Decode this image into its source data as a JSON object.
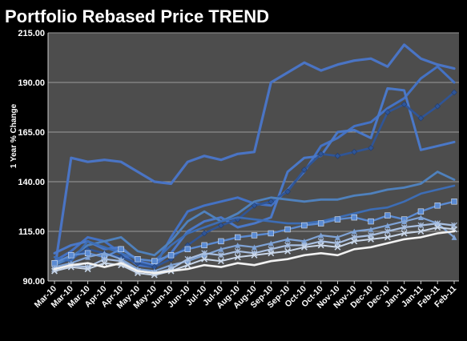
{
  "chart_data": {
    "type": "line",
    "title": "Portfolio Rebased Price TREND",
    "ylabel": "1 Year % Change",
    "xlabel": "",
    "ylim": [
      90,
      215
    ],
    "yticks": [
      90,
      115,
      140,
      165,
      190,
      215
    ],
    "ytick_labels": [
      "90.00",
      "115.00",
      "140.00",
      "165.00",
      "190.00",
      "215.00"
    ],
    "categories": [
      "Mar-10",
      "Mar-10",
      "Mar-10",
      "Apr-10",
      "Apr-10",
      "May-10",
      "May-10",
      "Jun-10",
      "Jun-10",
      "Jul-10",
      "Jul-10",
      "Aug-10",
      "Aug-10",
      "Sep-10",
      "Sep-10",
      "Oct-10",
      "Oct-10",
      "Nov-10",
      "Nov-10",
      "Dec-10",
      "Dec-10",
      "Jan-11",
      "Jan-11",
      "Feb-11",
      "Feb-11"
    ],
    "grid": true,
    "legend": "none",
    "colors": {
      "background": "#000000",
      "plot_area": "#4d4d4d",
      "gridline": "#9a9a9a",
      "text": "#ffffff",
      "series_dark_blue": "#4472c4",
      "series_mid_blue": "#5b8bd0",
      "series_light_blue": "#8fb0dc",
      "series_steel": "#2f5597",
      "series_pale": "#c9d7ea",
      "series_white": "#f2f2f2"
    },
    "series": [
      {
        "color": "#4a74c4",
        "width": 3.2,
        "marker": "none",
        "values": [
          95,
          152,
          150,
          151,
          150,
          145,
          140,
          139,
          150,
          153,
          151,
          154,
          155,
          190,
          195,
          200,
          196,
          199,
          201,
          202,
          198,
          209,
          202,
          199,
          197
        ]
      },
      {
        "color": "#4472c4",
        "width": 3.0,
        "marker": "none",
        "values": [
          100,
          105,
          112,
          110,
          104,
          98,
          97,
          112,
          125,
          128,
          130,
          132,
          129,
          128,
          136,
          145,
          158,
          162,
          168,
          170,
          177,
          182,
          192,
          198,
          190
        ]
      },
      {
        "color": "#4a78c8",
        "width": 3.0,
        "marker": "none",
        "values": [
          104,
          108,
          110,
          106,
          107,
          100,
          98,
          104,
          115,
          120,
          122,
          117,
          119,
          122,
          145,
          152,
          153,
          165,
          166,
          162,
          187,
          186,
          156,
          158,
          160
        ]
      },
      {
        "color": "#2f5597",
        "width": 2.6,
        "marker": "diamond",
        "values": [
          98,
          101,
          106,
          104,
          102,
          99,
          97,
          101,
          108,
          114,
          118,
          121,
          128,
          130,
          135,
          146,
          154,
          153,
          155,
          157,
          175,
          179,
          172,
          178,
          185
        ]
      },
      {
        "color": "#4f81bd",
        "width": 2.8,
        "marker": "none",
        "values": [
          98,
          102,
          108,
          110,
          112,
          105,
          103,
          110,
          120,
          125,
          120,
          124,
          130,
          132,
          131,
          130,
          131,
          131,
          133,
          134,
          136,
          137,
          139,
          145,
          141
        ]
      },
      {
        "color": "#3d6db5",
        "width": 2.6,
        "marker": "none",
        "values": [
          102,
          100,
          110,
          107,
          104,
          101,
          100,
          108,
          114,
          117,
          120,
          122,
          121,
          120,
          119,
          119,
          120,
          122,
          124,
          126,
          127,
          130,
          134,
          136,
          138
        ]
      },
      {
        "color": "#5a8ad2",
        "width": 2.4,
        "marker": "square",
        "values": [
          99,
          103,
          104,
          102,
          106,
          101,
          100,
          103,
          106,
          108,
          110,
          112,
          113,
          114,
          116,
          118,
          119,
          121,
          122,
          120,
          123,
          121,
          125,
          128,
          130
        ]
      },
      {
        "color": "#7fa3d6",
        "width": 2.2,
        "marker": "triangle",
        "values": [
          97,
          99,
          102,
          104,
          101,
          96,
          95,
          98,
          100,
          103,
          106,
          108,
          107,
          109,
          111,
          110,
          113,
          112,
          115,
          116,
          118,
          120,
          122,
          119,
          112
        ]
      },
      {
        "color": "#a9c0e2",
        "width": 2.2,
        "marker": "star",
        "values": [
          96,
          98,
          97,
          101,
          100,
          95,
          94,
          96,
          101,
          104,
          103,
          105,
          104,
          106,
          108,
          108,
          110,
          109,
          112,
          113,
          115,
          117,
          118,
          119,
          118
        ]
      },
      {
        "color": "#c9d7ea",
        "width": 2.0,
        "marker": "x",
        "values": [
          95,
          97,
          96,
          99,
          98,
          94,
          93,
          95,
          98,
          101,
          100,
          102,
          103,
          104,
          105,
          107,
          108,
          107,
          110,
          111,
          112,
          114,
          115,
          117,
          116
        ]
      },
      {
        "color": "#f2f2f2",
        "width": 2.6,
        "marker": "none",
        "values": [
          96,
          98,
          99,
          97,
          99,
          95,
          94,
          95,
          96,
          98,
          97,
          99,
          98,
          100,
          101,
          103,
          104,
          103,
          106,
          107,
          109,
          111,
          112,
          114,
          115
        ]
      }
    ]
  }
}
